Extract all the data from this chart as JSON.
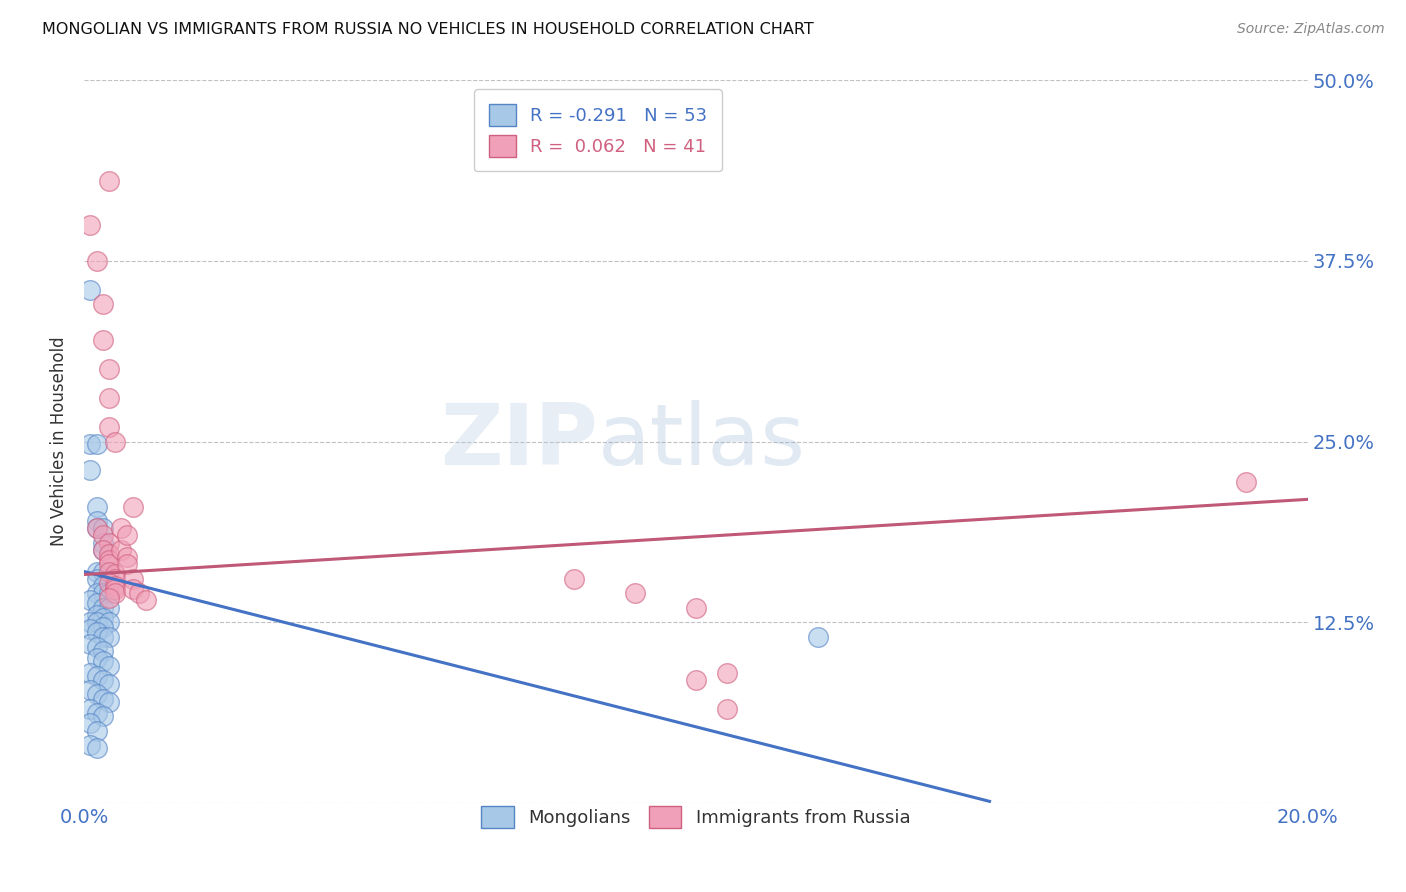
{
  "title": "MONGOLIAN VS IMMIGRANTS FROM RUSSIA NO VEHICLES IN HOUSEHOLD CORRELATION CHART",
  "source": "Source: ZipAtlas.com",
  "ylabel": "No Vehicles in Household",
  "xlim": [
    0.0,
    0.2
  ],
  "ylim": [
    0.0,
    0.5
  ],
  "x_ticks": [
    0.0,
    0.05,
    0.1,
    0.15,
    0.2
  ],
  "x_tick_labels": [
    "0.0%",
    "",
    "",
    "",
    "20.0%"
  ],
  "y_ticks": [
    0.0,
    0.125,
    0.25,
    0.375,
    0.5
  ],
  "y_tick_labels_right": [
    "",
    "12.5%",
    "25.0%",
    "37.5%",
    "50.0%"
  ],
  "legend_blue_r": "R = -0.291",
  "legend_blue_n": "N = 53",
  "legend_pink_r": "R =  0.062",
  "legend_pink_n": "N = 41",
  "blue_scatter": [
    [
      0.001,
      0.355
    ],
    [
      0.001,
      0.248
    ],
    [
      0.002,
      0.248
    ],
    [
      0.001,
      0.23
    ],
    [
      0.002,
      0.205
    ],
    [
      0.002,
      0.195
    ],
    [
      0.002,
      0.19
    ],
    [
      0.003,
      0.19
    ],
    [
      0.003,
      0.18
    ],
    [
      0.003,
      0.175
    ],
    [
      0.002,
      0.16
    ],
    [
      0.003,
      0.16
    ],
    [
      0.002,
      0.155
    ],
    [
      0.003,
      0.15
    ],
    [
      0.002,
      0.145
    ],
    [
      0.003,
      0.145
    ],
    [
      0.004,
      0.145
    ],
    [
      0.001,
      0.14
    ],
    [
      0.002,
      0.138
    ],
    [
      0.003,
      0.135
    ],
    [
      0.004,
      0.135
    ],
    [
      0.002,
      0.13
    ],
    [
      0.003,
      0.128
    ],
    [
      0.001,
      0.125
    ],
    [
      0.002,
      0.125
    ],
    [
      0.004,
      0.125
    ],
    [
      0.003,
      0.122
    ],
    [
      0.001,
      0.12
    ],
    [
      0.002,
      0.118
    ],
    [
      0.003,
      0.115
    ],
    [
      0.004,
      0.115
    ],
    [
      0.001,
      0.11
    ],
    [
      0.002,
      0.108
    ],
    [
      0.003,
      0.105
    ],
    [
      0.002,
      0.1
    ],
    [
      0.003,
      0.098
    ],
    [
      0.004,
      0.095
    ],
    [
      0.001,
      0.09
    ],
    [
      0.002,
      0.088
    ],
    [
      0.003,
      0.085
    ],
    [
      0.004,
      0.082
    ],
    [
      0.001,
      0.078
    ],
    [
      0.002,
      0.075
    ],
    [
      0.003,
      0.072
    ],
    [
      0.004,
      0.07
    ],
    [
      0.001,
      0.065
    ],
    [
      0.002,
      0.062
    ],
    [
      0.003,
      0.06
    ],
    [
      0.001,
      0.055
    ],
    [
      0.002,
      0.05
    ],
    [
      0.001,
      0.04
    ],
    [
      0.002,
      0.038
    ],
    [
      0.12,
      0.115
    ]
  ],
  "pink_scatter": [
    [
      0.001,
      0.4
    ],
    [
      0.004,
      0.43
    ],
    [
      0.002,
      0.375
    ],
    [
      0.003,
      0.345
    ],
    [
      0.003,
      0.32
    ],
    [
      0.004,
      0.3
    ],
    [
      0.004,
      0.28
    ],
    [
      0.004,
      0.26
    ],
    [
      0.005,
      0.25
    ],
    [
      0.008,
      0.205
    ],
    [
      0.002,
      0.19
    ],
    [
      0.003,
      0.185
    ],
    [
      0.004,
      0.18
    ],
    [
      0.003,
      0.175
    ],
    [
      0.004,
      0.172
    ],
    [
      0.004,
      0.168
    ],
    [
      0.004,
      0.165
    ],
    [
      0.004,
      0.16
    ],
    [
      0.005,
      0.158
    ],
    [
      0.005,
      0.155
    ],
    [
      0.004,
      0.152
    ],
    [
      0.005,
      0.15
    ],
    [
      0.005,
      0.148
    ],
    [
      0.005,
      0.145
    ],
    [
      0.004,
      0.142
    ],
    [
      0.006,
      0.19
    ],
    [
      0.006,
      0.175
    ],
    [
      0.007,
      0.185
    ],
    [
      0.007,
      0.17
    ],
    [
      0.007,
      0.165
    ],
    [
      0.008,
      0.155
    ],
    [
      0.008,
      0.148
    ],
    [
      0.009,
      0.145
    ],
    [
      0.01,
      0.14
    ],
    [
      0.08,
      0.155
    ],
    [
      0.09,
      0.145
    ],
    [
      0.1,
      0.135
    ],
    [
      0.1,
      0.085
    ],
    [
      0.105,
      0.065
    ],
    [
      0.105,
      0.09
    ],
    [
      0.19,
      0.222
    ]
  ],
  "blue_line_x": [
    0.0,
    0.148
  ],
  "blue_line_y": [
    0.16,
    0.001
  ],
  "pink_line_x": [
    0.0,
    0.2
  ],
  "pink_line_y": [
    0.158,
    0.21
  ],
  "blue_color": "#A8C8E8",
  "pink_color": "#F0A0B8",
  "blue_edge_color": "#5585C5",
  "pink_edge_color": "#D06080",
  "blue_line_color": "#4472C4",
  "pink_line_color": "#C05878",
  "background_color": "#ffffff",
  "grid_color": "#BBBBBB",
  "watermark": "ZIPatlas"
}
